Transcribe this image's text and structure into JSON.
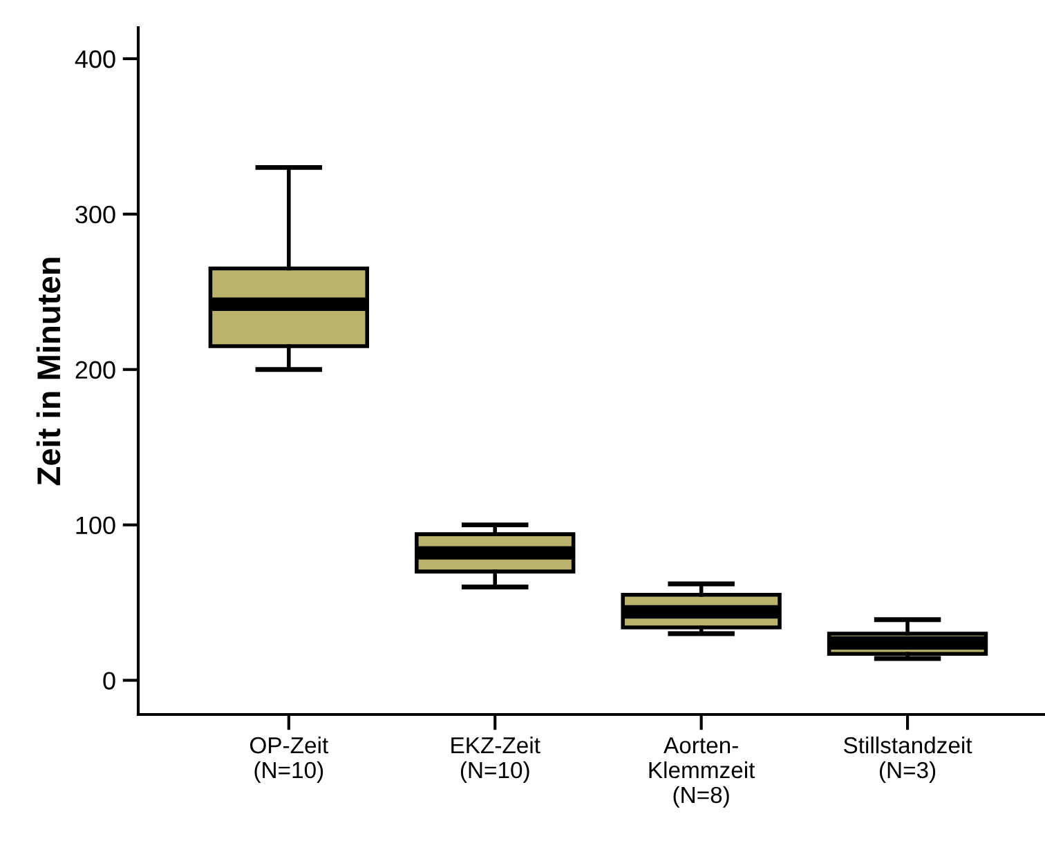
{
  "chart_data": {
    "type": "box",
    "ylabel": "Zeit in Minuten",
    "categories": [
      "OP-Zeit\n(N=10)",
      "EKZ-Zeit\n(N=10)",
      "Aorten-\nKlemmzeit\n(N=8)",
      "Stillstandzeit\n(N=3)"
    ],
    "boxes": [
      {
        "low": 200,
        "q1": 215,
        "median": 242,
        "q3": 265,
        "high": 330
      },
      {
        "low": 60,
        "q1": 70,
        "median": 82,
        "q3": 94,
        "high": 100
      },
      {
        "low": 30,
        "q1": 34,
        "median": 44,
        "q3": 55,
        "high": 62
      },
      {
        "low": 14,
        "q1": 17,
        "median": 24,
        "q3": 30,
        "high": 39
      }
    ],
    "color": "#bbb36b",
    "ylim": [
      -22,
      420
    ],
    "yticks": [
      0,
      100,
      200,
      300,
      400
    ],
    "grid": false
  }
}
